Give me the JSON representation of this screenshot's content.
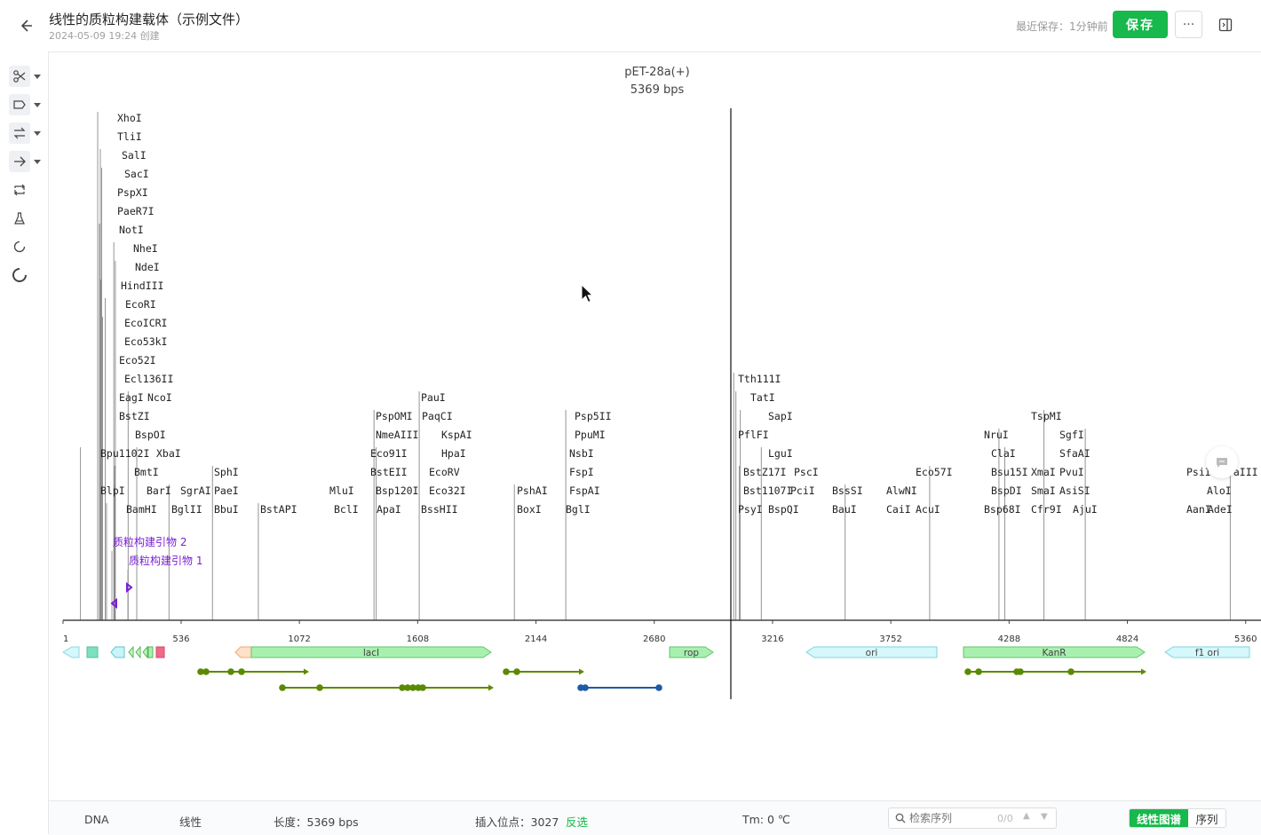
{
  "header": {
    "title": "线性的质粒构建载体（示例文件）",
    "created": "2024-05-09 19:24 创建",
    "saved": "最近保存：1分钟前",
    "save_label": "保存",
    "more_label": "···"
  },
  "toolbar": {
    "tools": [
      "scissors-icon",
      "tag-icon",
      "swap-icon",
      "arrow-right-icon",
      "loop-icon",
      "flask-icon",
      "circle-icon",
      "ring-icon"
    ]
  },
  "map": {
    "name": "pET-28a(+)",
    "length_label": "5369 bps",
    "axis_ticks": [
      "1",
      "536",
      "1072",
      "1608",
      "2144",
      "2680",
      "3216",
      "3752",
      "4288",
      "4824",
      "5360"
    ],
    "enzymes": [
      {
        "name": "XhoI",
        "site": 158
      },
      {
        "name": "TliI",
        "site": 158
      },
      {
        "name": "SalI",
        "site": 170
      },
      {
        "name": "SacI",
        "site": 176
      },
      {
        "name": "PspXI",
        "site": 158
      },
      {
        "name": "PaeR7I",
        "site": 158
      },
      {
        "name": "NotI",
        "site": 166
      },
      {
        "name": "NheI",
        "site": 231
      },
      {
        "name": "NdeI",
        "site": 238
      },
      {
        "name": "HindIII",
        "site": 173
      },
      {
        "name": "EcoRI",
        "site": 192
      },
      {
        "name": "EcoICRI",
        "site": 180
      },
      {
        "name": "Eco53kI",
        "site": 180
      },
      {
        "name": "Eco52I",
        "site": 166
      },
      {
        "name": "Ecl136II",
        "site": 180
      },
      {
        "name": "EagI",
        "site": 166
      },
      {
        "name": "NcoI",
        "site": 296
      },
      {
        "name": "BstZI",
        "site": 166
      },
      {
        "name": "BspOI",
        "site": 231
      },
      {
        "name": "Bpu1102I",
        "site": 80
      },
      {
        "name": "XbaI",
        "site": 335
      },
      {
        "name": "BmtI",
        "site": 235
      },
      {
        "name": "SphI",
        "site": 678
      },
      {
        "name": "BlpI",
        "site": 80
      },
      {
        "name": "BarI",
        "site": 234
      },
      {
        "name": "SgrAI",
        "site": 481
      },
      {
        "name": "PaeI",
        "site": 678
      },
      {
        "name": "BamHI",
        "site": 198
      },
      {
        "name": "BglII",
        "site": 481
      },
      {
        "name": "BbuI",
        "site": 678
      },
      {
        "name": "BstAPI",
        "site": 886
      },
      {
        "name": "MluI",
        "site": 1410
      },
      {
        "name": "BclI",
        "site": 1410
      },
      {
        "name": "PspOMI",
        "site": 1410
      },
      {
        "name": "NmeAIII",
        "site": 1410
      },
      {
        "name": "Eco91I",
        "site": 1420
      },
      {
        "name": "BstEII",
        "site": 1420
      },
      {
        "name": "Bsp120I",
        "site": 1410
      },
      {
        "name": "ApaI",
        "site": 1410
      },
      {
        "name": "PauI",
        "site": 1615
      },
      {
        "name": "PaqCI",
        "site": 1615
      },
      {
        "name": "KspAI",
        "site": 1615
      },
      {
        "name": "HpaI",
        "site": 1615
      },
      {
        "name": "EcoRV",
        "site": 1615
      },
      {
        "name": "Eco32I",
        "site": 1615
      },
      {
        "name": "BssHII",
        "site": 1615
      },
      {
        "name": "PshAI",
        "site": 2046
      },
      {
        "name": "BoxI",
        "site": 2046
      },
      {
        "name": "Psp5II",
        "site": 2279
      },
      {
        "name": "PpuMI",
        "site": 2279
      },
      {
        "name": "NsbI",
        "site": 2279
      },
      {
        "name": "FspI",
        "site": 2279
      },
      {
        "name": "FspAI",
        "site": 2279
      },
      {
        "name": "BglI",
        "site": 2279
      },
      {
        "name": "Tth111I",
        "site": 3040
      },
      {
        "name": "TatI",
        "site": 3050
      },
      {
        "name": "SapI",
        "site": 3070
      },
      {
        "name": "PflFI",
        "site": 3040
      },
      {
        "name": "LguI",
        "site": 3165
      },
      {
        "name": "BstZ17I",
        "site": 3065
      },
      {
        "name": "PscI",
        "site": 3165
      },
      {
        "name": "Bst1107I",
        "site": 3065
      },
      {
        "name": "PciI",
        "site": 3165
      },
      {
        "name": "PsyI",
        "site": 3040
      },
      {
        "name": "BspQI",
        "site": 3165
      },
      {
        "name": "BssSI",
        "site": 3545
      },
      {
        "name": "BauI",
        "site": 3545
      },
      {
        "name": "AlwNI",
        "site": 3928
      },
      {
        "name": "CaiI",
        "site": 3928
      },
      {
        "name": "Eco57I",
        "site": 3928
      },
      {
        "name": "AcuI",
        "site": 3928
      },
      {
        "name": "NruI",
        "site": 4242
      },
      {
        "name": "ClaI",
        "site": 4268
      },
      {
        "name": "Bsu15I",
        "site": 4268
      },
      {
        "name": "BspDI",
        "site": 4268
      },
      {
        "name": "Bsp68I",
        "site": 4242
      },
      {
        "name": "TspMI",
        "site": 4446
      },
      {
        "name": "SgfI",
        "site": 4633
      },
      {
        "name": "SfaAI",
        "site": 4633
      },
      {
        "name": "XmaI",
        "site": 4446
      },
      {
        "name": "PvuI",
        "site": 4633
      },
      {
        "name": "SmaI",
        "site": 4446
      },
      {
        "name": "AsiSI",
        "site": 4633
      },
      {
        "name": "Cfr9I",
        "site": 4446
      },
      {
        "name": "AjuI",
        "site": 4633
      },
      {
        "name": "PsiI",
        "site": 5290
      },
      {
        "name": "AloI",
        "site": 5290
      },
      {
        "name": "AanI",
        "site": 5290
      },
      {
        "name": "AdeI",
        "site": 5290
      },
      {
        "name": "DraIII",
        "site": 5290
      }
    ],
    "primers": [
      {
        "label": "质粒构建引物 2"
      },
      {
        "label": "质粒构建引物 1"
      }
    ],
    "features": [
      {
        "name": "lacI",
        "color": "#a8f0b0"
      },
      {
        "name": "rop",
        "color": "#a8f0b0"
      },
      {
        "name": "ori",
        "color": "#d4f8fb"
      },
      {
        "name": "KanR",
        "color": "#a8f0b0"
      },
      {
        "name": "f1 ori",
        "color": "#d4f8fb"
      }
    ],
    "cursor_position": 3027
  },
  "status": {
    "type": "DNA",
    "topology": "线性",
    "length": "长度：5369 bps",
    "insert": "插入位点：3027",
    "invert": "反选",
    "tm": "Tm: 0 ℃",
    "search_placeholder": "检索序列",
    "search_count": "0/0",
    "view_linear": "线性图谱",
    "view_seq": "序列"
  },
  "colors": {
    "accent": "#17b84c",
    "primer": "#7a1fd6",
    "orf_green": "#5a8a00",
    "orf_blue": "#1d5aa8"
  }
}
